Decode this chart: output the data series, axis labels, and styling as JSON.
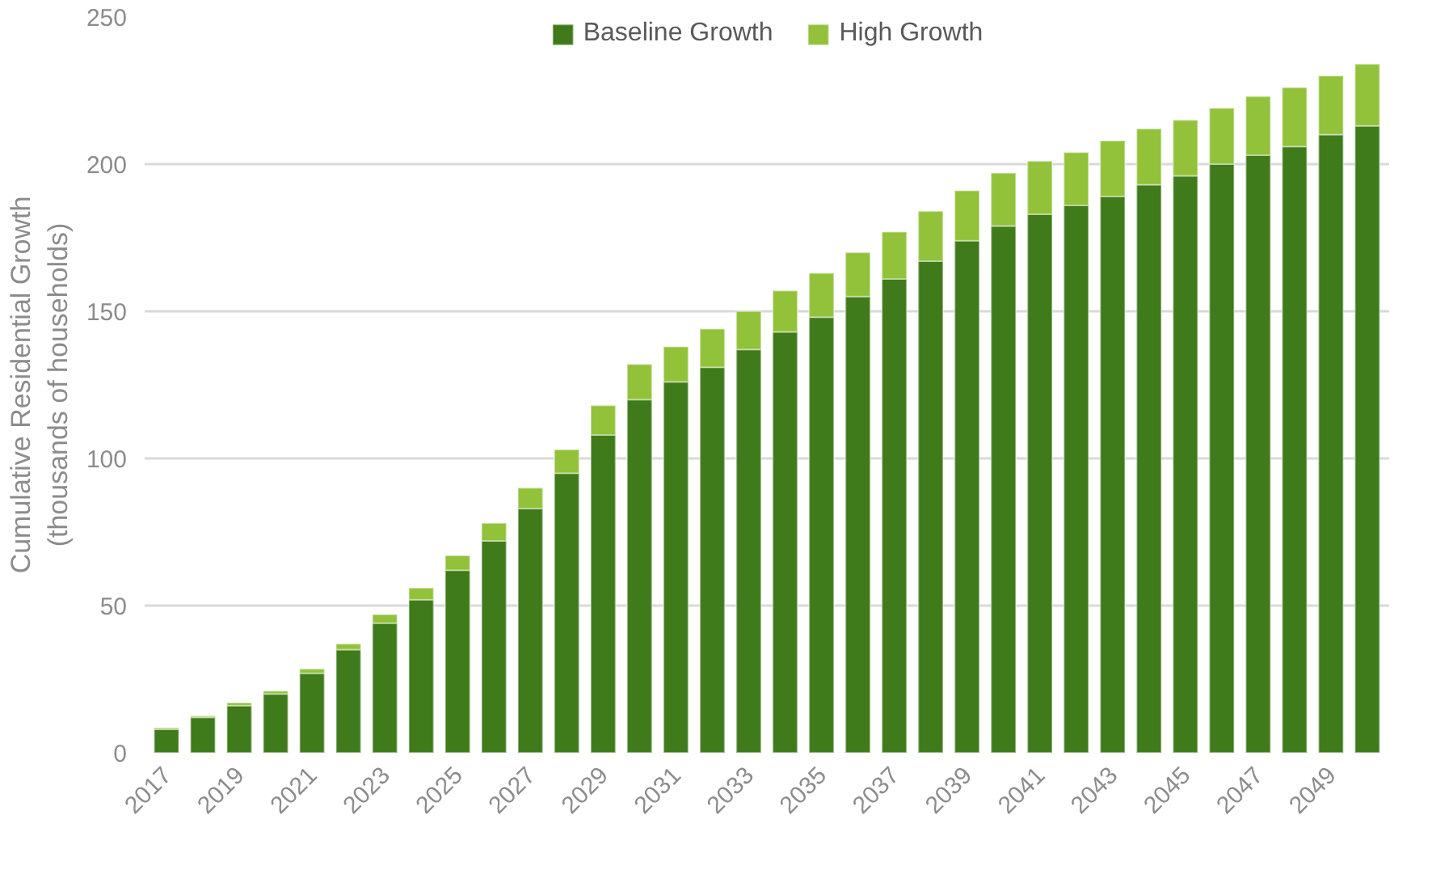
{
  "chart_data": {
    "type": "bar",
    "stacked": true,
    "ylabel": "Cumulative Residential Growth\n(thousands of households)",
    "categories": [
      "2017",
      null,
      "2019",
      null,
      "2021",
      null,
      "2023",
      null,
      "2025",
      null,
      "2027",
      null,
      "2029",
      null,
      "2031",
      null,
      "2033",
      null,
      "2035",
      null,
      "2037",
      null,
      "2039",
      null,
      "2041",
      null,
      "2043",
      null,
      "2045",
      null,
      "2047",
      null,
      "2049",
      null
    ],
    "series": [
      {
        "name": "Baseline Growth",
        "color": "#3f7a1b",
        "values": [
          8,
          12,
          16,
          20,
          27,
          35,
          44,
          52,
          62,
          72,
          83,
          95,
          108,
          120,
          126,
          131,
          137,
          143,
          148,
          155,
          161,
          167,
          174,
          179,
          183,
          186,
          189,
          193,
          196,
          200,
          203,
          206,
          210,
          213
        ]
      },
      {
        "name": "High Growth",
        "color": "#92c13a",
        "values": [
          0.5,
          0.5,
          1,
          1,
          1.5,
          2,
          3,
          4,
          5,
          6,
          7,
          8,
          10,
          12,
          12,
          13,
          13,
          14,
          15,
          15,
          16,
          17,
          17,
          18,
          18,
          18,
          19,
          19,
          19,
          19,
          20,
          20,
          20,
          21
        ]
      }
    ],
    "ylim": [
      0,
      250
    ],
    "yticks": [
      0,
      50,
      100,
      150,
      200,
      250
    ],
    "grid": "y",
    "legend": "top"
  }
}
